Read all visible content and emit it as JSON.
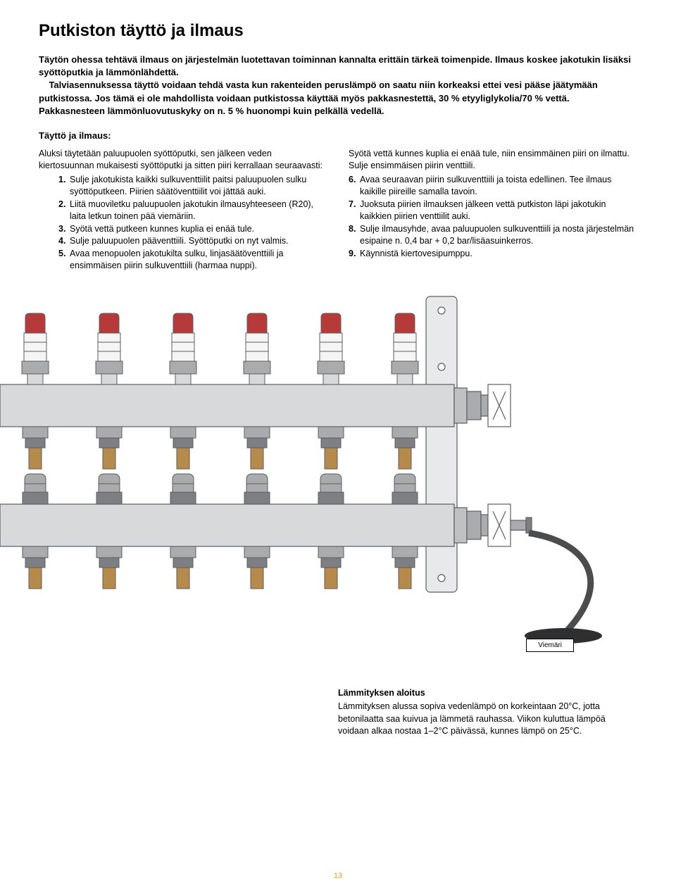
{
  "title": "Putkiston täyttö ja ilmaus",
  "intro": "Täytön ohessa tehtävä ilmaus on järjestelmän luotettavan toiminnan kannalta erittäin tärkeä toimenpide. Ilmaus koskee jakotukin lisäksi syöttöputkia ja lämmönlähdettä.\n    Talviasennuksessa täyttö voidaan tehdä vasta kun rakenteiden peruslämpö on saatu niin korkeaksi ettei vesi pääse jäätymään putkistossa. Jos tämä ei ole mahdollista voidaan putkistossa käyttää myös pakkasnestettä, 30 % etyyliglykolia/70 % vettä. Pakkasnesteen lämmönluovutuskyky on n. 5 % huonompi kuin pelkällä vedellä.",
  "sub_header": "Täyttö ja ilmaus:",
  "left_intro": "Aluksi täytetään paluupuolen syöttöputki, sen jälkeen veden kiertosuunnan mukaisesti syöttöputki ja sitten piiri kerrallaan seuraavasti:",
  "steps_left": [
    {
      "n": "1.",
      "t": "Sulje jakotukista kaikki sulkuventtiilit paitsi paluupuolen sulku syöttöputkeen. Piirien säätöventtiilit voi jättää auki."
    },
    {
      "n": "2.",
      "t": "Liitä muoviletku paluupuolen jakotukin ilmausyhteeseen (R20), laita letkun toinen pää viemäriin."
    },
    {
      "n": "3.",
      "t": "Syötä vettä putkeen kunnes kuplia ei enää tule."
    },
    {
      "n": "4.",
      "t": "Sulje paluupuolen pääventtiili. Syöttöputki on nyt valmis."
    },
    {
      "n": "5.",
      "t": "Avaa menopuolen jakotukilta sulku, linjasäätöventtiili ja ensimmäisen piirin sulkuventtiili (harmaa nuppi)."
    }
  ],
  "right_pre": "Syötä vettä kunnes kuplia ei enää tule, niin ensimmäinen piiri on ilmattu. Sulje ensimmäisen piirin venttiili.",
  "steps_right": [
    {
      "n": "6.",
      "t": "Avaa seuraavan piirin sulkuventtiili ja toista edellinen. Tee ilmaus kaikille piireille samalla tavoin."
    },
    {
      "n": "7.",
      "t": "Juoksuta piirien ilmauksen jälkeen vettä putkiston läpi jakotukin kaikkien piirien venttiilit auki."
    },
    {
      "n": "8.",
      "t": "Sulje ilmausyhde, avaa paluupuolen sulkuventtiili ja nosta järjestelmän esipaine n. 0,4 bar + 0,2 bar/lisäasuinkerros."
    },
    {
      "n": "9.",
      "t": "Käynnistä kiertovesipumppu."
    }
  ],
  "drain_label": "Viemäri",
  "footer": {
    "h": "Lämmityksen aloitus",
    "p": "Lämmityksen alussa sopiva vedenlämpö on korkeintaan 20°C, jotta betonilaatta saa kuivua ja lämmetä rauhassa. Viikon kuluttua lämpöä voidaan alkaa nostaa 1–2°C päivässä, kunnes lämpö on 25°C."
  },
  "page_number": "13",
  "colors": {
    "red": "#b73a3a",
    "grey_light": "#d8d9da",
    "grey_mid": "#a9abad",
    "grey_dark": "#7d7f82",
    "brass": "#b58a4a",
    "accent": "#f7941d",
    "stroke": "#5b5d60"
  }
}
